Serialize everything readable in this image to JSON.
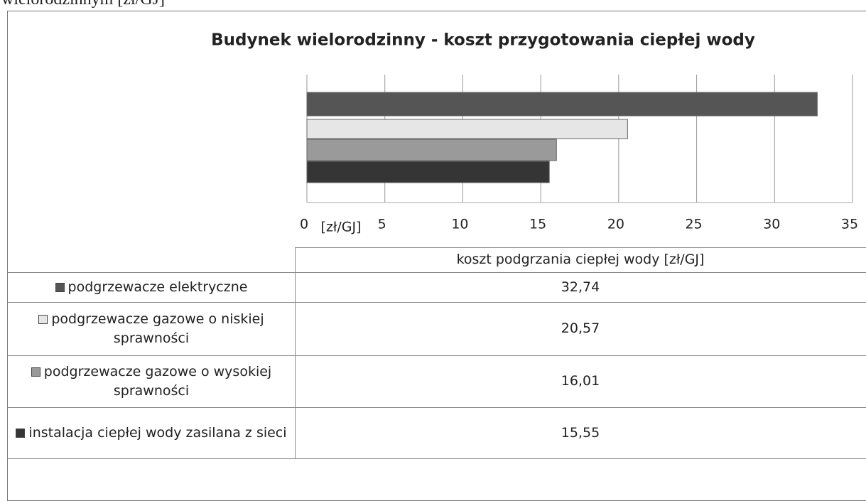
{
  "caption": "wielorodzinnym [zł/GJ]",
  "chart_data": {
    "type": "bar",
    "orientation": "horizontal",
    "title": "Budynek wielorodzinny - koszt przygotowania ciepłej wody",
    "x_label": "[zł/GJ]",
    "categories": [
      "podgrzewacze elektryczne",
      "podgrzewacze gazowe o niskiej sprawności",
      "podgrzewacze gazowe o wysokiej sprawności",
      "instalacja ciepłej wody zasilana z sieci"
    ],
    "values": [
      32.74,
      20.57,
      16.01,
      15.55
    ],
    "value_labels": [
      "32,74",
      "20,57",
      "16,01",
      "15,55"
    ],
    "colors": [
      "#555555",
      "#e6e6e6",
      "#9a9a9a",
      "#353535"
    ],
    "xlim": [
      0,
      35
    ],
    "xticks": [
      0,
      5,
      10,
      15,
      20,
      25,
      30,
      35
    ],
    "grid": true,
    "table_header": "koszt podgrzania ciepłej wody  [zł/GJ]"
  }
}
